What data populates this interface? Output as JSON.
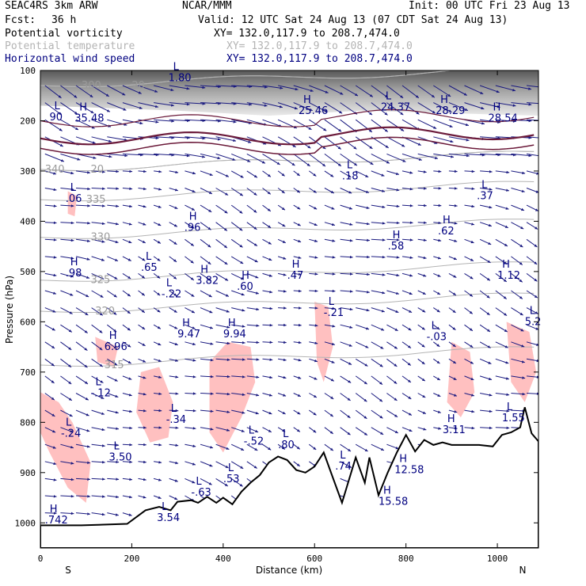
{
  "header": {
    "model": "SEAC4RS 3km ARW",
    "org": "NCAR/MMM",
    "init": "Init: 00 UTC Fri 23 Aug 13",
    "fcst_label": "Fcst:",
    "fcst_value": "36 h",
    "valid": "Valid: 12 UTC Sat 24 Aug 13 (07 CDT Sat 24 Aug 13)"
  },
  "fields": [
    {
      "name": "Potential vorticity",
      "xy": "XY= 132.0,117.9 to 208.7,474.0",
      "color": "#000000"
    },
    {
      "name": "Potential temperature",
      "xy": "XY= 132.0,117.9 to 208.7,474.0",
      "color": "#b4b4b4"
    },
    {
      "name": "Horizontal wind speed",
      "xy": "XY= 132.0,117.9 to 208.7,474.0",
      "color": "#000080"
    }
  ],
  "colors": {
    "wind_arrow": "#1a1a80",
    "pv_contour": "#6b1a3a",
    "theta_contour": "#b4b4b4",
    "shading_low": "#ffc0c0",
    "terrain": "#000000",
    "hl_labels": "#000080"
  },
  "chart_data": {
    "type": "cross-section",
    "xlabel": "Distance (km)",
    "ylabel": "Pressure (hPa)",
    "xlim": [
      0,
      1090
    ],
    "ylim": [
      1050,
      100
    ],
    "x_ticks": [
      "0",
      "200",
      "400",
      "600",
      "800",
      "1000"
    ],
    "x_tick_values": [
      0,
      200,
      400,
      600,
      800,
      1000
    ],
    "y_ticks": [
      "100",
      "200",
      "300",
      "400",
      "500",
      "600",
      "700",
      "800",
      "900",
      "1000"
    ],
    "y_tick_values": [
      100,
      200,
      300,
      400,
      500,
      600,
      700,
      800,
      900,
      1000
    ],
    "endpoints": {
      "left": "S",
      "right": "N"
    },
    "theta_contours": [
      {
        "label": "340",
        "x": 10,
        "p": 297
      },
      {
        "label": "335",
        "x": 100,
        "p": 357
      },
      {
        "label": "330",
        "x": 110,
        "p": 432
      },
      {
        "label": "325",
        "x": 110,
        "p": 517
      },
      {
        "label": "320",
        "x": 120,
        "p": 579
      },
      {
        "label": "315",
        "x": 140,
        "p": 686
      },
      {
        "label": "300",
        "x": 90,
        "p": 130
      },
      {
        "label": "20",
        "x": 200,
        "p": 130
      },
      {
        "label": "20",
        "x": 110,
        "p": 297
      }
    ],
    "hl_labels": [
      {
        "tag": "L",
        "value": "90",
        "x": 20,
        "p": 193
      },
      {
        "tag": "H",
        "value": "35.48",
        "x": 75,
        "p": 195
      },
      {
        "tag": "L",
        "value": "1.80",
        "x": 280,
        "p": 115
      },
      {
        "tag": "H",
        "value": "25.46",
        "x": 565,
        "p": 180
      },
      {
        "tag": "L",
        "value": "24.37",
        "x": 745,
        "p": 173
      },
      {
        "tag": "H",
        "value": "28.29",
        "x": 865,
        "p": 180
      },
      {
        "tag": "H",
        "value": "28.54",
        "x": 980,
        "p": 195
      },
      {
        "tag": "L",
        "value": ".06",
        "x": 55,
        "p": 355
      },
      {
        "tag": "L",
        "value": ".18",
        "x": 660,
        "p": 310
      },
      {
        "tag": "L",
        "value": ".37",
        "x": 955,
        "p": 350
      },
      {
        "tag": "H",
        "value": ".96",
        "x": 315,
        "p": 413
      },
      {
        "tag": "H",
        "value": ".62",
        "x": 870,
        "p": 420
      },
      {
        "tag": "H",
        "value": ".58",
        "x": 760,
        "p": 450
      },
      {
        "tag": "H",
        "value": ".98",
        "x": 55,
        "p": 503
      },
      {
        "tag": "L",
        "value": ".65",
        "x": 220,
        "p": 492
      },
      {
        "tag": "H",
        "value": "3.82",
        "x": 340,
        "p": 518
      },
      {
        "tag": "H",
        "value": ".60",
        "x": 430,
        "p": 530
      },
      {
        "tag": "H",
        "value": ".47",
        "x": 540,
        "p": 508
      },
      {
        "tag": "L",
        "value": "-.22",
        "x": 265,
        "p": 545
      },
      {
        "tag": "H",
        "value": "1.12",
        "x": 1000,
        "p": 508
      },
      {
        "tag": "L",
        "value": "-.21",
        "x": 620,
        "p": 582
      },
      {
        "tag": "H",
        "value": "9.47",
        "x": 300,
        "p": 625
      },
      {
        "tag": "H",
        "value": "9.94",
        "x": 400,
        "p": 625
      },
      {
        "tag": "L",
        "value": "-.03",
        "x": 845,
        "p": 630
      },
      {
        "tag": "L",
        "value": "5.2",
        "x": 1060,
        "p": 600
      },
      {
        "tag": "H",
        "value": "6.96",
        "x": 140,
        "p": 650
      },
      {
        "tag": "L",
        "value": "-.12",
        "x": 110,
        "p": 742
      },
      {
        "tag": "L",
        "value": "-.34",
        "x": 275,
        "p": 795
      },
      {
        "tag": "L",
        "value": "-.24",
        "x": 45,
        "p": 822
      },
      {
        "tag": "L",
        "value": "-.52",
        "x": 445,
        "p": 838
      },
      {
        "tag": "L",
        "value": ".80",
        "x": 520,
        "p": 845
      },
      {
        "tag": "L",
        "value": "1.55",
        "x": 1010,
        "p": 792
      },
      {
        "tag": "H",
        "value": "3.11",
        "x": 880,
        "p": 815
      },
      {
        "tag": "L",
        "value": "3.50",
        "x": 150,
        "p": 870
      },
      {
        "tag": "L",
        "value": ".53",
        "x": 400,
        "p": 913
      },
      {
        "tag": "L",
        "value": ".74",
        "x": 645,
        "p": 888
      },
      {
        "tag": "H",
        "value": "12.58",
        "x": 775,
        "p": 895
      },
      {
        "tag": "L",
        "value": "-.63",
        "x": 330,
        "p": 940
      },
      {
        "tag": "H",
        "value": "15.58",
        "x": 740,
        "p": 958
      },
      {
        "tag": "L",
        "value": "3.54",
        "x": 255,
        "p": 990
      },
      {
        "tag": "H",
        "value": ".742",
        "x": 10,
        "p": 995
      }
    ]
  }
}
